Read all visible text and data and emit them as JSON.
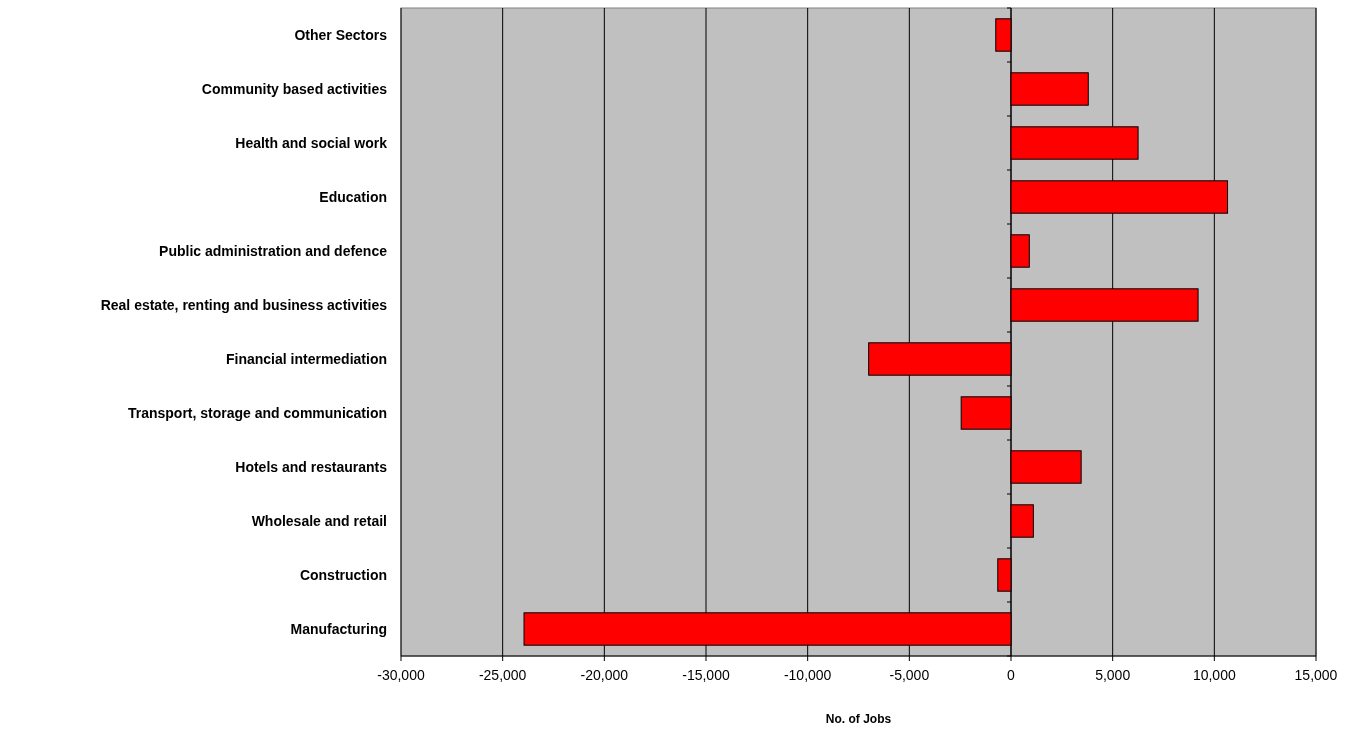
{
  "chart_data": {
    "type": "bar",
    "orientation": "horizontal",
    "xlabel": "No. of Jobs",
    "categories": [
      "Other Sectors",
      "Community based activities",
      "Health and social work",
      "Education",
      "Public administration and defence",
      "Real estate, renting and business activities",
      "Financial intermediation",
      "Transport, storage and communication",
      "Hotels and restaurants",
      "Wholesale and retail",
      "Construction",
      "Manufacturing"
    ],
    "values": [
      -750,
      3800,
      6250,
      10650,
      900,
      9200,
      -7000,
      -2450,
      3450,
      1100,
      -650,
      -23950
    ],
    "color": "#ff0000",
    "xlim": [
      -30000,
      15000
    ],
    "xticks": [
      {
        "value": -30000,
        "label": "-30,000"
      },
      {
        "value": -25000,
        "label": "-25,000"
      },
      {
        "value": -20000,
        "label": "-20,000"
      },
      {
        "value": -15000,
        "label": "-15,000"
      },
      {
        "value": -10000,
        "label": "-10,000"
      },
      {
        "value": -5000,
        "label": "-5,000"
      },
      0,
      {
        "value": 5000,
        "label": "5,000"
      },
      {
        "value": 10000,
        "label": "10,000"
      },
      {
        "value": 15000,
        "label": "15,000"
      }
    ],
    "grid": "x"
  }
}
